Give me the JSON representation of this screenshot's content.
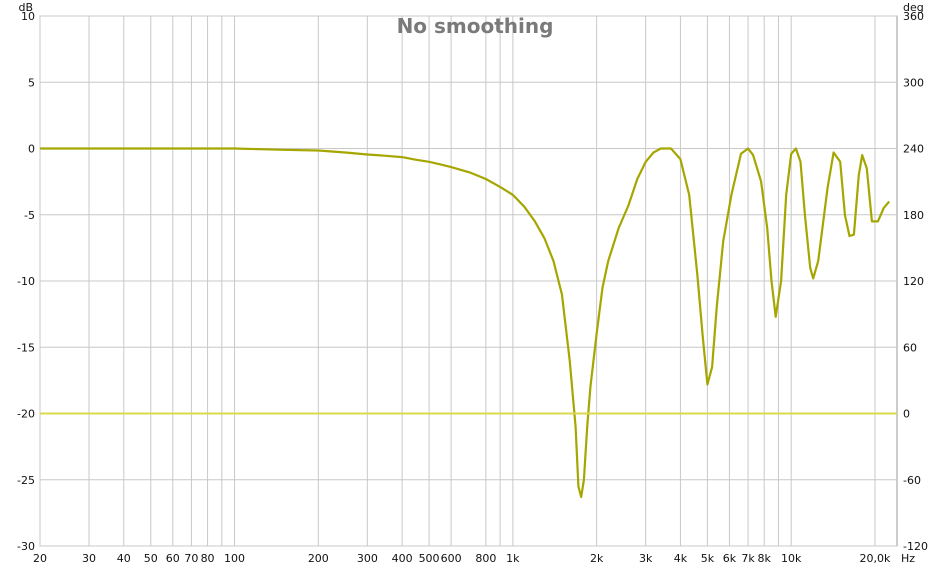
{
  "chart_data": {
    "type": "line",
    "title": "No smoothing",
    "xscale": "log",
    "xlim": [
      20,
      24000
    ],
    "ylim": [
      -30,
      10
    ],
    "y2lim": [
      -120,
      360
    ],
    "y_unit": "dB",
    "y2_unit": "deg",
    "x_unit": "Hz",
    "grid": true,
    "x_ticks": [
      {
        "v": 20,
        "label": "20"
      },
      {
        "v": 30,
        "label": "30"
      },
      {
        "v": 40,
        "label": "40"
      },
      {
        "v": 50,
        "label": "50"
      },
      {
        "v": 60,
        "label": "60"
      },
      {
        "v": 70,
        "label": "70"
      },
      {
        "v": 80,
        "label": "80"
      },
      {
        "v": 100,
        "label": "100"
      },
      {
        "v": 200,
        "label": "200"
      },
      {
        "v": 300,
        "label": "300"
      },
      {
        "v": 400,
        "label": "400"
      },
      {
        "v": 500,
        "label": "500"
      },
      {
        "v": 600,
        "label": "600"
      },
      {
        "v": 800,
        "label": "800"
      },
      {
        "v": 1000,
        "label": "1k"
      },
      {
        "v": 2000,
        "label": "2k"
      },
      {
        "v": 3000,
        "label": "3k"
      },
      {
        "v": 4000,
        "label": "4k"
      },
      {
        "v": 5000,
        "label": "5k"
      },
      {
        "v": 6000,
        "label": "6k"
      },
      {
        "v": 7000,
        "label": "7k"
      },
      {
        "v": 8000,
        "label": "8k"
      },
      {
        "v": 10000,
        "label": "10k"
      },
      {
        "v": 20000,
        "label": "20,0k"
      }
    ],
    "x_minor_gridlines": [
      90,
      900,
      9000
    ],
    "y_ticks": [
      10,
      5,
      0,
      -5,
      -10,
      -15,
      -20,
      -25,
      -30
    ],
    "y2_ticks": [
      360,
      300,
      240,
      180,
      120,
      60,
      0,
      -60,
      -120
    ],
    "series": [
      {
        "color": "#a6a600",
        "points": [
          [
            20,
            0
          ],
          [
            100,
            0
          ],
          [
            150,
            -0.1
          ],
          [
            200,
            -0.15
          ],
          [
            250,
            -0.3
          ],
          [
            300,
            -0.45
          ],
          [
            350,
            -0.55
          ],
          [
            400,
            -0.65
          ],
          [
            450,
            -0.85
          ],
          [
            500,
            -1.0
          ],
          [
            550,
            -1.2
          ],
          [
            600,
            -1.4
          ],
          [
            700,
            -1.8
          ],
          [
            800,
            -2.3
          ],
          [
            900,
            -2.9
          ],
          [
            1000,
            -3.5
          ],
          [
            1100,
            -4.4
          ],
          [
            1200,
            -5.5
          ],
          [
            1300,
            -6.8
          ],
          [
            1400,
            -8.5
          ],
          [
            1500,
            -11
          ],
          [
            1600,
            -16
          ],
          [
            1680,
            -21
          ],
          [
            1720,
            -25.5
          ],
          [
            1760,
            -26.3
          ],
          [
            1800,
            -25
          ],
          [
            1850,
            -21
          ],
          [
            1900,
            -18
          ],
          [
            2000,
            -14
          ],
          [
            2100,
            -10.5
          ],
          [
            2200,
            -8.5
          ],
          [
            2400,
            -6
          ],
          [
            2600,
            -4.3
          ],
          [
            2800,
            -2.3
          ],
          [
            3000,
            -1.0
          ],
          [
            3200,
            -0.3
          ],
          [
            3400,
            0
          ],
          [
            3700,
            0
          ],
          [
            4000,
            -0.8
          ],
          [
            4300,
            -3.5
          ],
          [
            4600,
            -9.5
          ],
          [
            4800,
            -14
          ],
          [
            5000,
            -17.8
          ],
          [
            5200,
            -16.5
          ],
          [
            5400,
            -12
          ],
          [
            5700,
            -7
          ],
          [
            6100,
            -3.5
          ],
          [
            6600,
            -0.4
          ],
          [
            7000,
            0
          ],
          [
            7300,
            -0.5
          ],
          [
            7800,
            -2.5
          ],
          [
            8200,
            -6
          ],
          [
            8500,
            -10
          ],
          [
            8800,
            -12.7
          ],
          [
            9200,
            -10
          ],
          [
            9600,
            -3.5
          ],
          [
            10000,
            -0.4
          ],
          [
            10400,
            0
          ],
          [
            10800,
            -1
          ],
          [
            11200,
            -5
          ],
          [
            11700,
            -9
          ],
          [
            12000,
            -9.8
          ],
          [
            12500,
            -8.5
          ],
          [
            13500,
            -3
          ],
          [
            14200,
            -0.3
          ],
          [
            15000,
            -1
          ],
          [
            15600,
            -5
          ],
          [
            16200,
            -6.6
          ],
          [
            16800,
            -6.5
          ],
          [
            17500,
            -2
          ],
          [
            18000,
            -0.5
          ],
          [
            18700,
            -1.5
          ],
          [
            19500,
            -5.5
          ],
          [
            20500,
            -5.5
          ],
          [
            21500,
            -4.5
          ],
          [
            22500,
            -4
          ]
        ]
      },
      {
        "color": "#d8d84a",
        "points": [
          [
            20,
            -20
          ],
          [
            24000,
            -20
          ]
        ]
      }
    ]
  }
}
